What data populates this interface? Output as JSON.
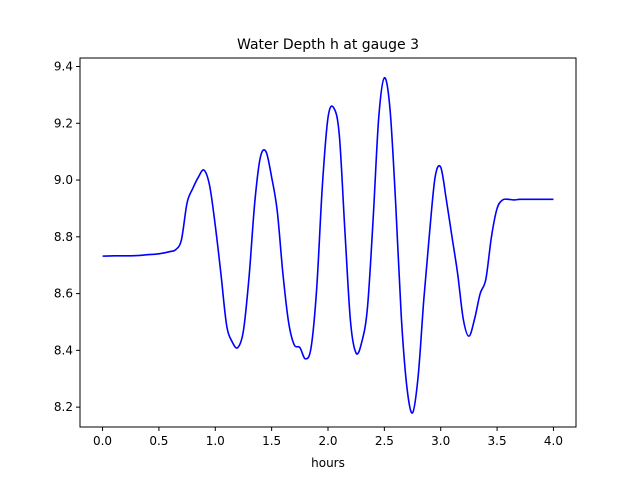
{
  "chart_data": {
    "type": "line",
    "title": "Water Depth h at gauge 3",
    "xlabel": "hours",
    "ylabel": "",
    "xlim": [
      -0.2,
      4.2
    ],
    "ylim": [
      8.13,
      9.43
    ],
    "xticks": [
      0.0,
      0.5,
      1.0,
      1.5,
      2.0,
      2.5,
      3.0,
      3.5,
      4.0
    ],
    "xtick_labels": [
      "0.0",
      "0.5",
      "1.0",
      "1.5",
      "2.0",
      "2.5",
      "3.0",
      "3.5",
      "4.0"
    ],
    "yticks": [
      8.2,
      8.4,
      8.6,
      8.8,
      9.0,
      9.2,
      9.4
    ],
    "ytick_labels": [
      "8.2",
      "8.4",
      "8.6",
      "8.8",
      "9.0",
      "9.2",
      "9.4"
    ],
    "grid": false,
    "series": [
      {
        "color": "#0000ff",
        "x": [
          0.0,
          0.1,
          0.2,
          0.3,
          0.4,
          0.5,
          0.6,
          0.65,
          0.7,
          0.75,
          0.8,
          0.85,
          0.9,
          0.95,
          1.0,
          1.05,
          1.1,
          1.15,
          1.2,
          1.25,
          1.3,
          1.35,
          1.4,
          1.45,
          1.5,
          1.55,
          1.6,
          1.65,
          1.7,
          1.75,
          1.8,
          1.85,
          1.9,
          1.95,
          2.0,
          2.05,
          2.1,
          2.15,
          2.2,
          2.25,
          2.3,
          2.35,
          2.4,
          2.45,
          2.5,
          2.55,
          2.6,
          2.65,
          2.7,
          2.75,
          2.8,
          2.85,
          2.9,
          2.95,
          3.0,
          3.05,
          3.1,
          3.15,
          3.2,
          3.25,
          3.3,
          3.35,
          3.4,
          3.45,
          3.5,
          3.55,
          3.6,
          3.65,
          3.7,
          3.75,
          3.8,
          3.85,
          3.9,
          3.95,
          4.0
        ],
        "y": [
          8.732,
          8.733,
          8.733,
          8.734,
          8.737,
          8.74,
          8.748,
          8.755,
          8.79,
          8.92,
          8.97,
          9.01,
          9.035,
          8.98,
          8.84,
          8.67,
          8.49,
          8.43,
          8.41,
          8.47,
          8.66,
          8.92,
          9.08,
          9.1,
          9.01,
          8.89,
          8.67,
          8.5,
          8.42,
          8.41,
          8.37,
          8.41,
          8.62,
          8.98,
          9.22,
          9.255,
          9.16,
          8.82,
          8.5,
          8.39,
          8.43,
          8.55,
          8.86,
          9.22,
          9.36,
          9.25,
          8.92,
          8.52,
          8.27,
          8.18,
          8.31,
          8.58,
          8.81,
          9.01,
          9.045,
          8.93,
          8.8,
          8.67,
          8.51,
          8.45,
          8.51,
          8.6,
          8.65,
          8.8,
          8.9,
          8.93,
          8.932,
          8.93,
          8.932,
          8.932,
          8.932,
          8.932,
          8.932,
          8.932,
          8.932
        ]
      }
    ]
  }
}
